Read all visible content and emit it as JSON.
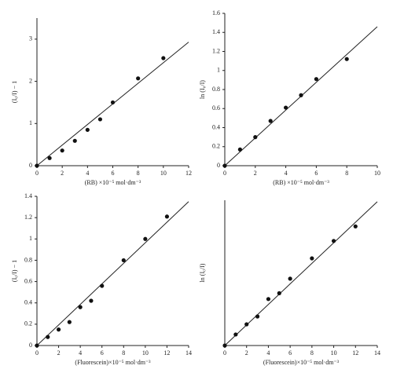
{
  "chart_data": [
    {
      "type": "scatter",
      "x_label": "(RB) ×10⁻⁵ mol·dm⁻³",
      "y_label": "(I₀/I) − 1",
      "x": [
        0,
        1,
        2,
        3,
        4,
        5,
        6,
        8,
        10
      ],
      "values": [
        0,
        0.18,
        0.36,
        0.59,
        0.85,
        1.1,
        1.5,
        2.07,
        2.55
      ],
      "fit_line": {
        "x": [
          0,
          12
        ],
        "y": [
          0,
          2.93
        ]
      },
      "xlim": [
        0,
        12
      ],
      "xticks": [
        0,
        2,
        4,
        6,
        8,
        10,
        12
      ],
      "ylim": [
        0,
        3.5
      ],
      "yticks": [
        0,
        1,
        2,
        3
      ],
      "color": "#111111"
    },
    {
      "type": "scatter",
      "x_label": "(RB) ×10⁻⁵ mol·dm⁻³",
      "y_label": "ln (I₀/I)",
      "x": [
        0,
        1,
        2,
        3,
        4,
        5,
        6,
        8
      ],
      "values": [
        0,
        0.17,
        0.3,
        0.47,
        0.61,
        0.74,
        0.91,
        1.12
      ],
      "fit_line": {
        "x": [
          0,
          10
        ],
        "y": [
          0,
          1.46
        ]
      },
      "xlim": [
        0,
        10
      ],
      "xticks": [
        0,
        2,
        4,
        6,
        8,
        10
      ],
      "ylim": [
        0,
        1.6
      ],
      "yticks": [
        0,
        0.2,
        0.4,
        0.6,
        0.8,
        1,
        1.2,
        1.4,
        1.6
      ],
      "color": "#111111"
    },
    {
      "type": "scatter",
      "x_label": "(Fluorescein)×10⁻⁵ mol·dm⁻³",
      "y_label": "(I₀/I) − 1",
      "x": [
        0,
        1,
        2,
        3,
        4,
        5,
        6,
        8,
        10,
        12
      ],
      "values": [
        0,
        0.08,
        0.15,
        0.22,
        0.36,
        0.42,
        0.56,
        0.8,
        1.0,
        1.21
      ],
      "fit_line": {
        "x": [
          0,
          14
        ],
        "y": [
          0,
          1.35
        ]
      },
      "xlim": [
        0,
        14
      ],
      "xticks": [
        0,
        2,
        4,
        6,
        8,
        10,
        12,
        14
      ],
      "ylim": [
        0,
        1.4
      ],
      "yticks": [
        0,
        0.2,
        0.4,
        0.6,
        0.8,
        1,
        1.2,
        1.4
      ],
      "color": "#111111"
    },
    {
      "type": "scatter",
      "x_label": "(Fluorescein)×10⁻⁵ mol·dm⁻³",
      "y_label": "ln (I₀/I)",
      "x": [
        0,
        1,
        2,
        3,
        4,
        5,
        6,
        8,
        10,
        12
      ],
      "values": [
        0,
        0.076,
        0.146,
        0.2,
        0.32,
        0.36,
        0.46,
        0.6,
        0.72,
        0.82
      ],
      "fit_line": {
        "x": [
          0,
          14
        ],
        "y": [
          0,
          0.99
        ]
      },
      "xlim": [
        0,
        14
      ],
      "xticks": [
        0,
        2,
        4,
        6,
        8,
        10,
        12,
        14
      ],
      "ylim": [
        0,
        1
      ],
      "color": "#111111"
    }
  ]
}
